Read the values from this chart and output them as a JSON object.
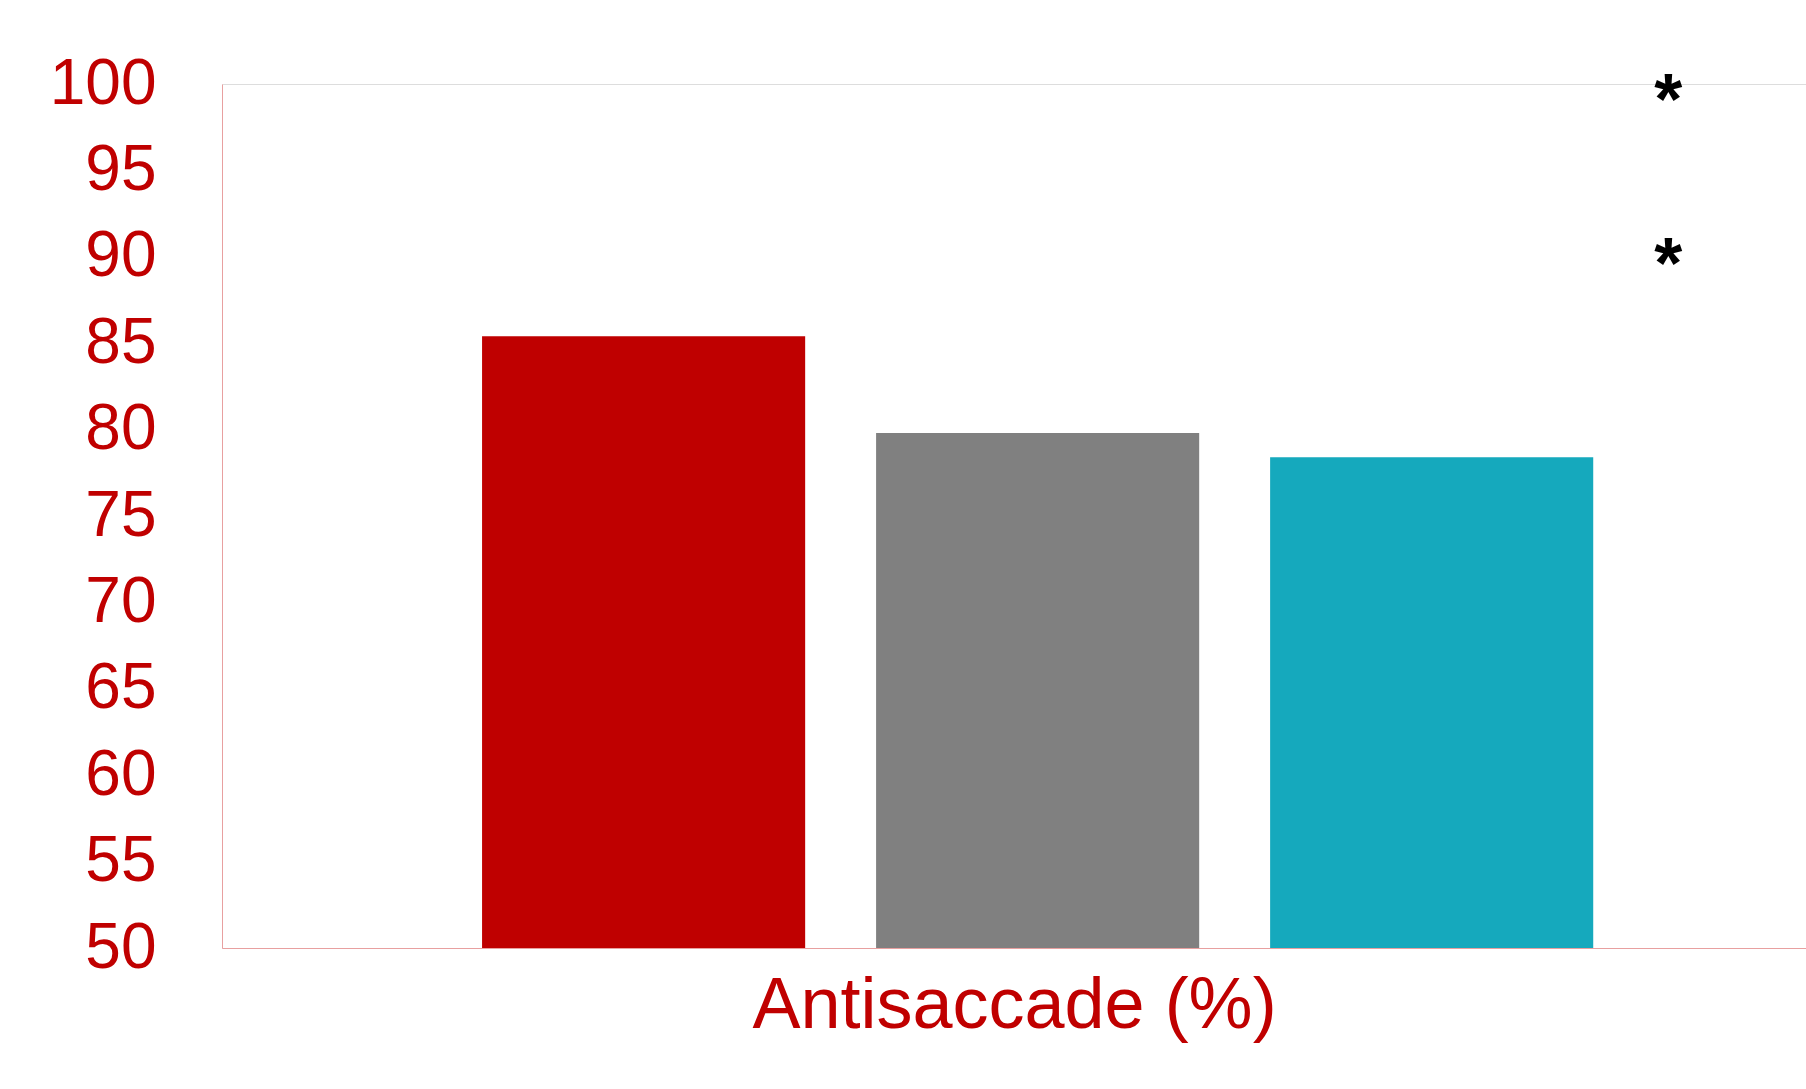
{
  "chart_data": {
    "type": "bar",
    "xlabel": "Antisaccade (%)",
    "categories": [
      null,
      null,
      null
    ],
    "values": [
      85.4,
      79.8,
      78.4
    ],
    "colors": [
      "#bf0000",
      "#808080",
      "#15a9bd"
    ],
    "ylim": [
      50,
      100
    ],
    "yticks": [
      50,
      55,
      60,
      65,
      70,
      75,
      80,
      85,
      90,
      95,
      100
    ],
    "grid": false,
    "annotations": [
      "*",
      "*"
    ]
  }
}
